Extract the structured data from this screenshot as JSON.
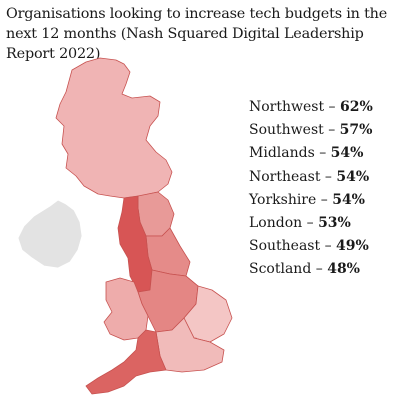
{
  "title": "Organisations looking to increase tech budgets in the next 12 months (Nash Squared Digital Leadership Report 2022)",
  "colors": {
    "ireland": "#e3e3e3",
    "scotland": "#f0b4b4",
    "north_east": "#e89a98",
    "yorkshire": "#e58b89",
    "northwest": "#d75555",
    "midlands": "#e48684",
    "wales": "#eeacab",
    "london": "#e27f7d",
    "southeast": "#f1bbba",
    "east": "#f4c6c5",
    "southwest": "#db6462",
    "border": "#c75250"
  },
  "regions": [
    {
      "name": "Northwest",
      "sep": " – ",
      "value": "62%"
    },
    {
      "name": "Southwest",
      "sep": " – ",
      "value": "57%"
    },
    {
      "name": "Midlands",
      "sep": " – ",
      "value": "54%"
    },
    {
      "name": "Northeast",
      "sep": " – ",
      "value": "54%"
    },
    {
      "name": "Yorkshire",
      "sep": " – ",
      "value": "54%"
    },
    {
      "name": "London",
      "sep": " – ",
      "value": "53%"
    },
    {
      "name": "Southeast",
      "sep": " – ",
      "value": "49%"
    },
    {
      "name": "Scotland",
      "sep": " – ",
      "value": "48%"
    }
  ]
}
